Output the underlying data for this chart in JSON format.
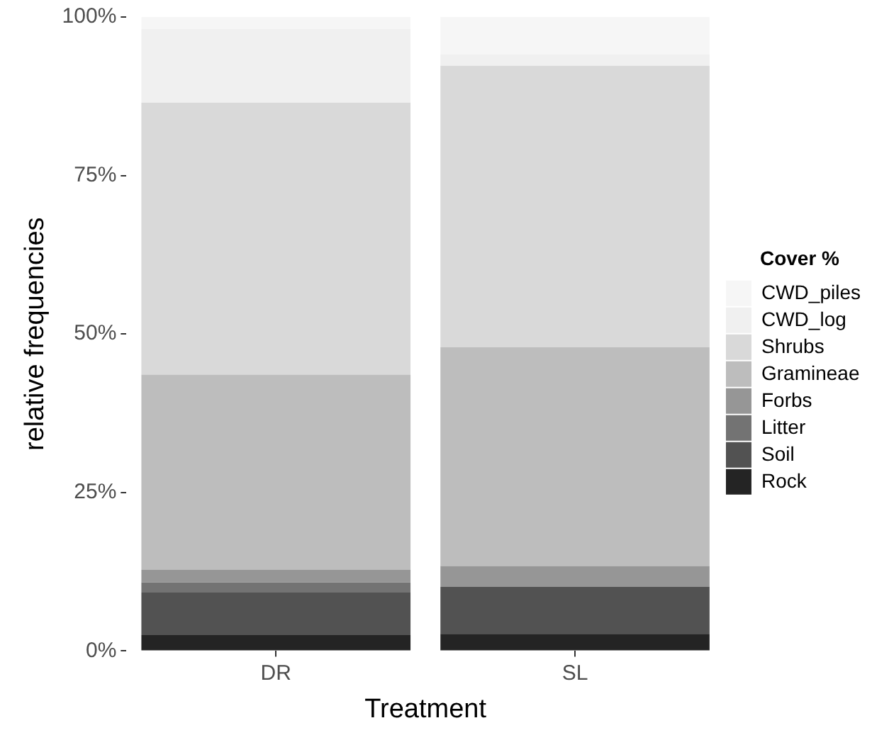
{
  "chart_data": {
    "type": "bar",
    "stacked": true,
    "xlabel": "Treatment",
    "ylabel": "relative frequencies",
    "legend_title": "Cover %",
    "legend": "right",
    "grid": false,
    "categories": [
      "DR",
      "SL"
    ],
    "series": [
      {
        "name": "Rock",
        "color": "#242424",
        "values": [
          2.5,
          2.7
        ]
      },
      {
        "name": "Soil",
        "color": "#525252",
        "values": [
          6.7,
          7.4
        ]
      },
      {
        "name": "Litter",
        "color": "#737373",
        "values": [
          1.6,
          0
        ]
      },
      {
        "name": "Forbs",
        "color": "#969696",
        "values": [
          2.0,
          3.3
        ]
      },
      {
        "name": "Gramineae",
        "color": "#bdbdbd",
        "values": [
          30.8,
          34.5
        ]
      },
      {
        "name": "Shrubs",
        "color": "#d9d9d9",
        "values": [
          42.9,
          44.4
        ]
      },
      {
        "name": "CWD_log",
        "color": "#f0f0f0",
        "values": [
          11.6,
          1.8
        ]
      },
      {
        "name": "CWD_piles",
        "color": "#f6f6f6",
        "values": [
          1.9,
          5.9
        ]
      }
    ],
    "ylim": [
      0,
      100
    ],
    "yticks": [
      {
        "value": 0,
        "label": "0%"
      },
      {
        "value": 25,
        "label": "25%"
      },
      {
        "value": 50,
        "label": "50%"
      },
      {
        "value": 75,
        "label": "75%"
      },
      {
        "value": 100,
        "label": "100%"
      }
    ]
  }
}
